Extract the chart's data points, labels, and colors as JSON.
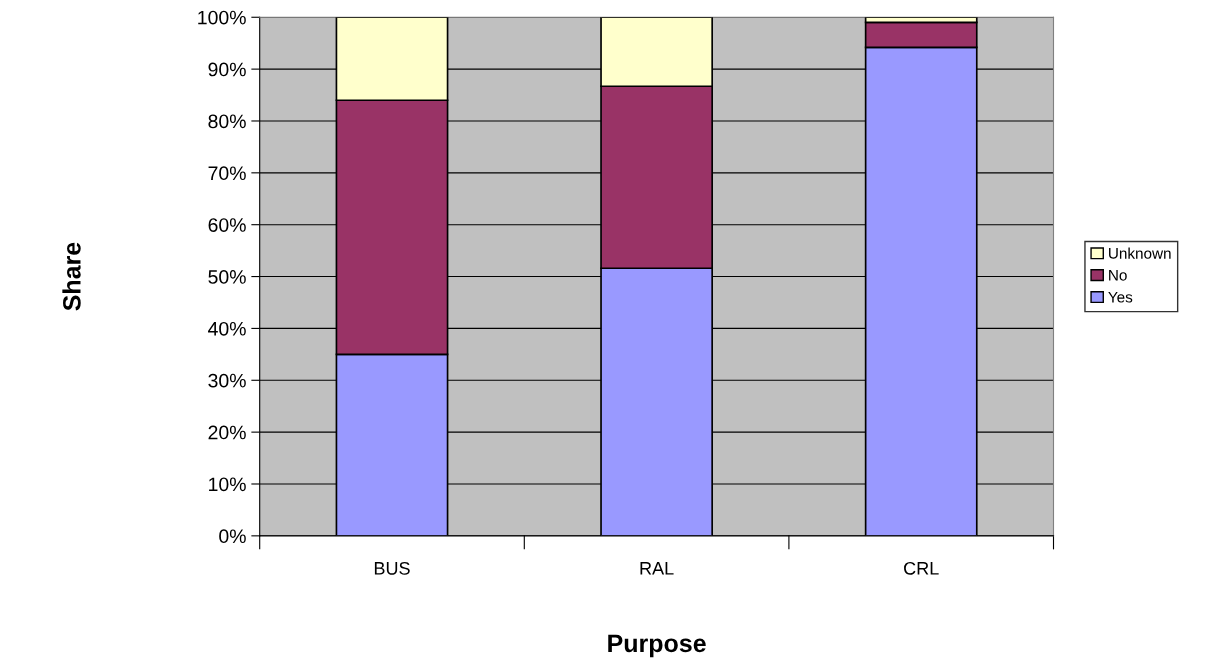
{
  "chart_data": {
    "type": "bar",
    "stacked": true,
    "xlabel": "Purpose",
    "ylabel": "Share",
    "categories": [
      "BUS",
      "RAL",
      "CRL"
    ],
    "series": [
      {
        "name": "Yes",
        "color": "#9999ff",
        "values": [
          35,
          51.6,
          94.2
        ]
      },
      {
        "name": "No",
        "color": "#993366",
        "values": [
          49,
          35.1,
          4.8
        ]
      },
      {
        "name": "Unknown",
        "color": "#ffffcc",
        "values": [
          16,
          13.3,
          1.0
        ]
      }
    ],
    "ylim": [
      0,
      100
    ],
    "yticks": [
      {
        "value": 0,
        "label": "0%"
      },
      {
        "value": 10,
        "label": "10%"
      },
      {
        "value": 20,
        "label": "20%"
      },
      {
        "value": 30,
        "label": "30%"
      },
      {
        "value": 40,
        "label": "40%"
      },
      {
        "value": 50,
        "label": "50%"
      },
      {
        "value": 60,
        "label": "60%"
      },
      {
        "value": 70,
        "label": "70%"
      },
      {
        "value": 80,
        "label": "80%"
      },
      {
        "value": 90,
        "label": "90%"
      },
      {
        "value": 100,
        "label": "100%"
      }
    ],
    "grid": "y",
    "legend": "right"
  }
}
